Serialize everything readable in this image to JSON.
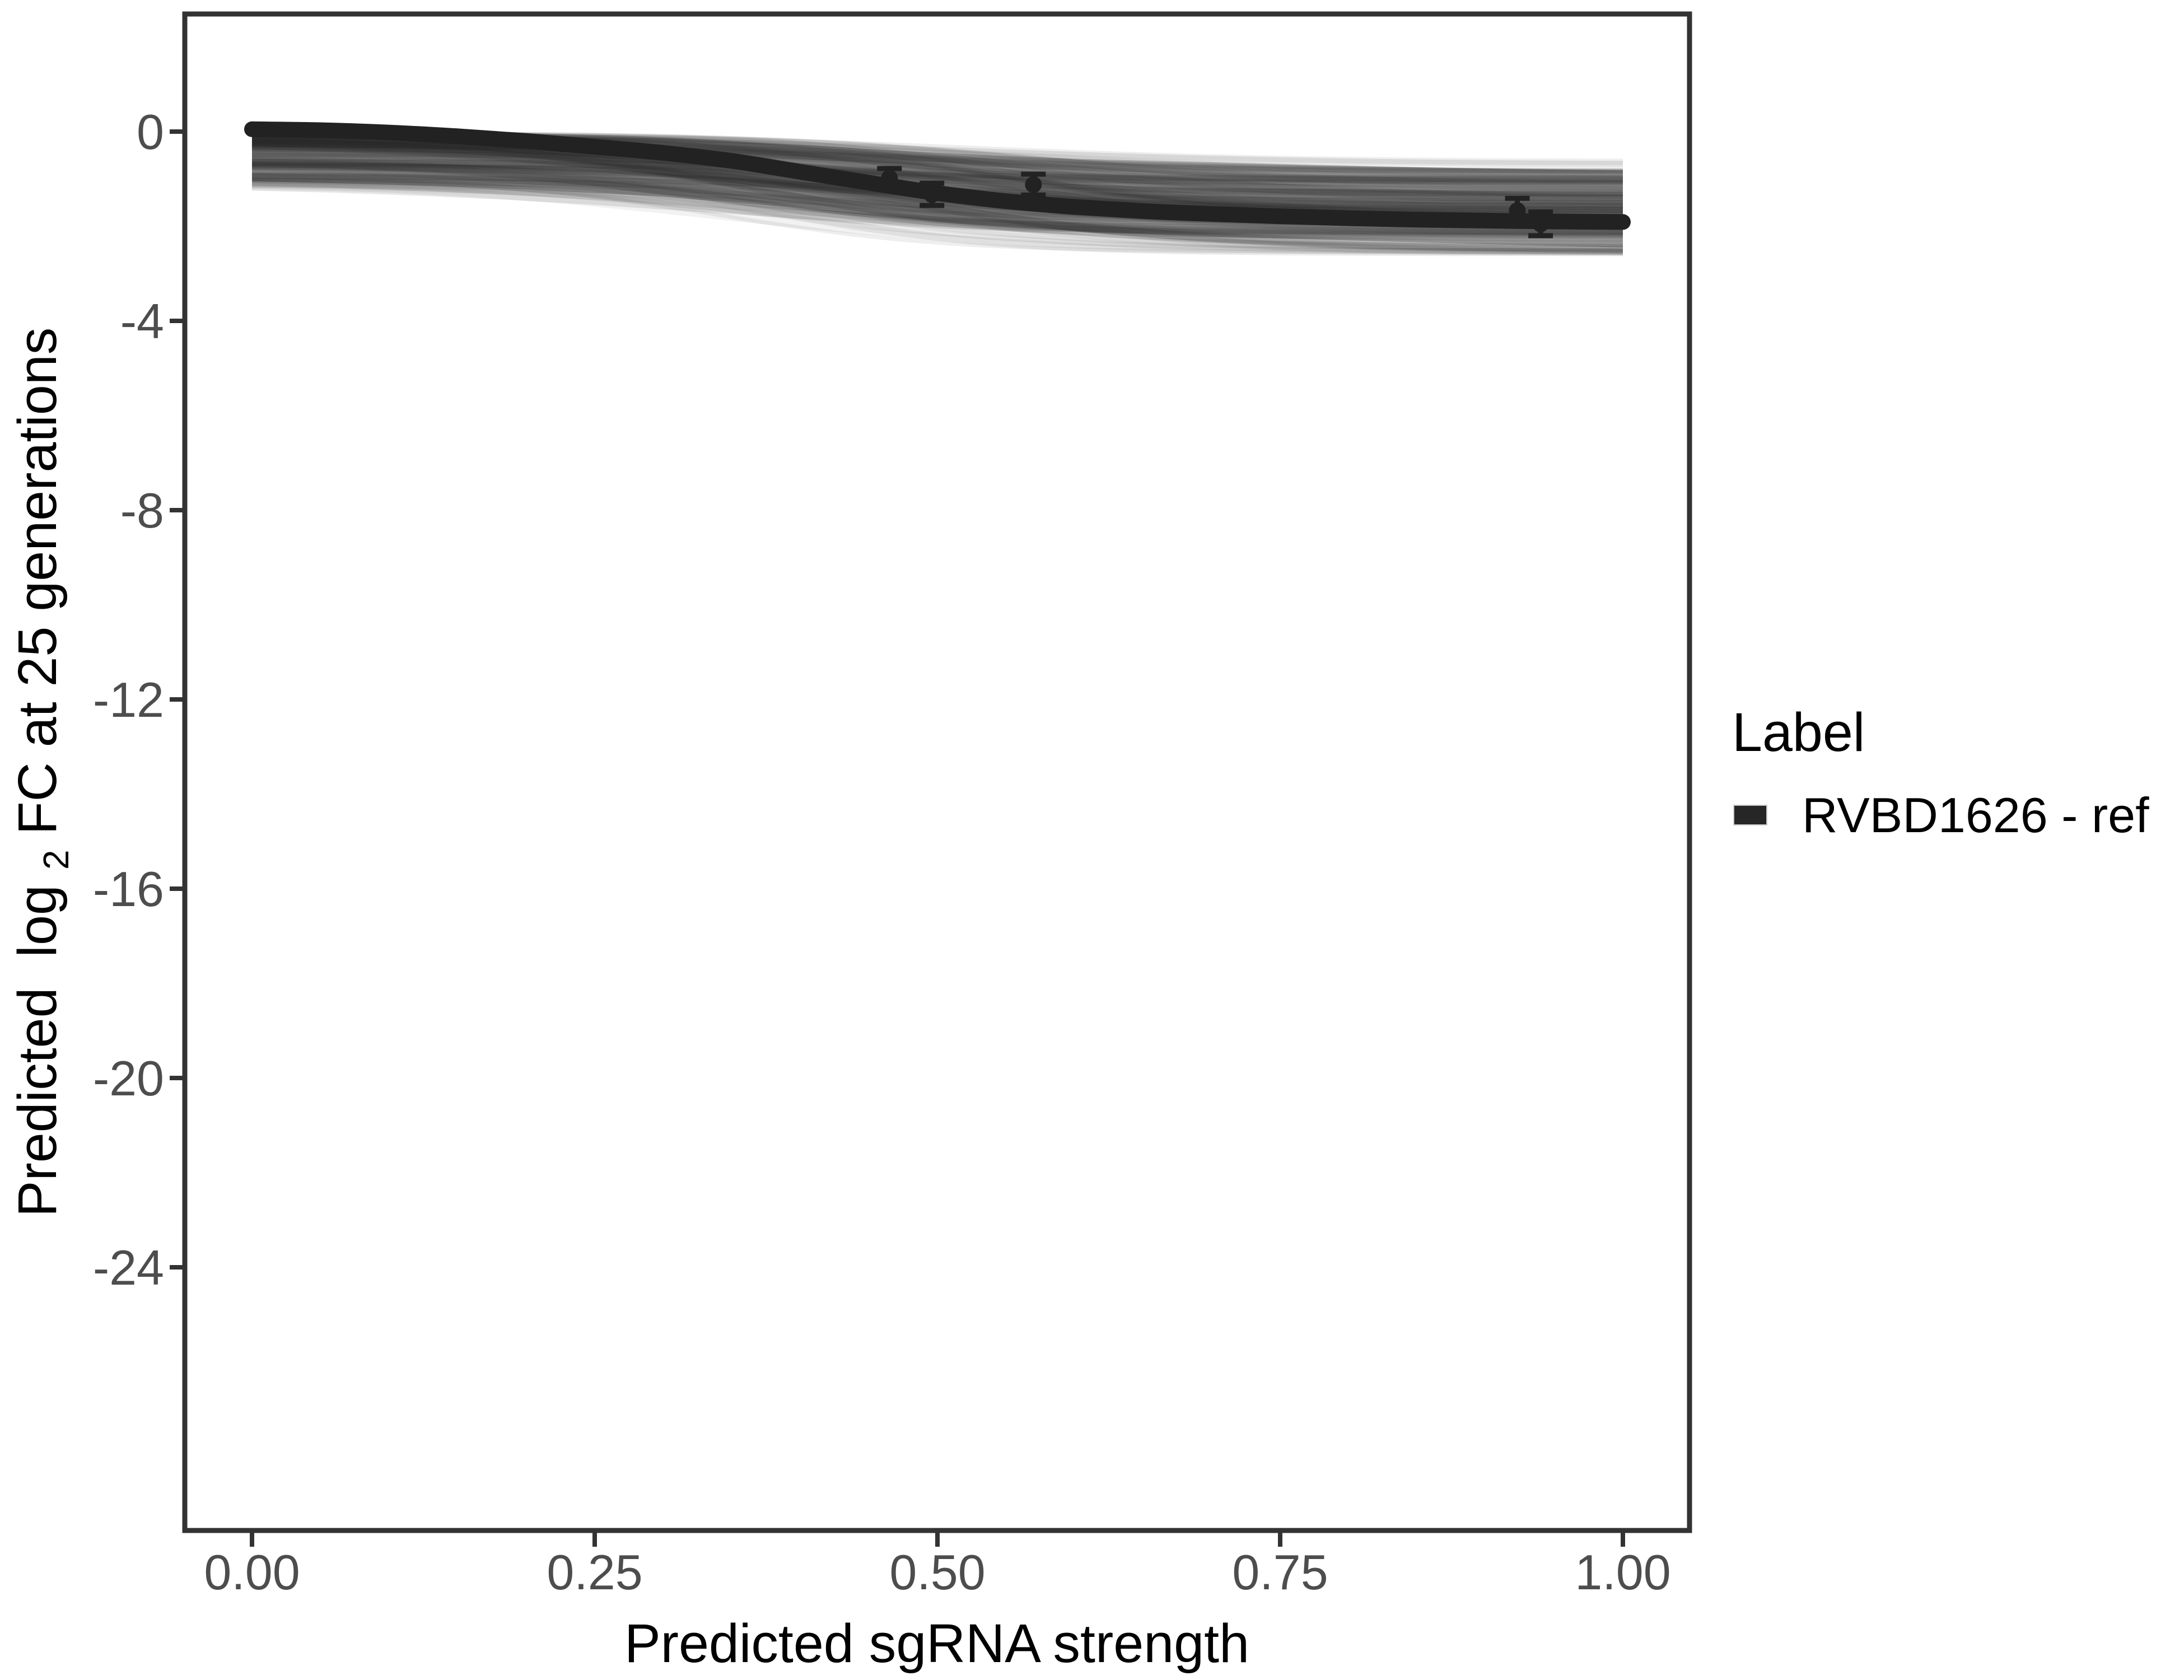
{
  "figure": {
    "background": "#ffffff"
  },
  "colors": {
    "panel_border": "#333333",
    "tick_mark": "#333333",
    "tick_label": "#4d4d4d",
    "axis_title": "#000000",
    "main_curve": "#222222",
    "error_bar": "#222222",
    "legend_key": "#262626",
    "band_fill": "rgba(0,0,0,0.28)",
    "spaghetti": "rgb(40,40,40)"
  },
  "chart_data": {
    "type": "line",
    "title": "",
    "xlabel": "Predicted sgRNA strength",
    "ylabel": "Predicted log2 FC at 25 generations",
    "ylabel_parts": {
      "pre": "Predicted  log",
      "sub": "2",
      "post": " FC at 25 generations"
    },
    "xlim": [
      -0.05,
      1.05
    ],
    "ylim": [
      -29.6,
      2.6
    ],
    "grid": false,
    "x_ticks": [
      0,
      0.25,
      0.5,
      0.75,
      1.0
    ],
    "x_tick_labels": [
      "0.00",
      "0.25",
      "0.50",
      "0.75",
      "1.00"
    ],
    "y_ticks": [
      0,
      -4,
      -8,
      -12,
      -16,
      -20,
      -24
    ],
    "y_tick_labels": [
      "0",
      "-4",
      "-8",
      "-12",
      "-16",
      "-20",
      "-24"
    ],
    "legend": {
      "title": "Label",
      "position": "right",
      "entries": [
        {
          "label": "RVBD1626 - ref",
          "color": "#262626"
        }
      ]
    },
    "series": [
      {
        "name": "RVBD1626 - ref (posterior mean fit)",
        "type": "line",
        "color": "#222222",
        "width": 28,
        "x": [
          0,
          0.05,
          0.1,
          0.15,
          0.2,
          0.25,
          0.3,
          0.35,
          0.4,
          0.45,
          0.5,
          0.55,
          0.6,
          0.65,
          0.7,
          0.75,
          0.8,
          0.85,
          0.9,
          0.95,
          1.0
        ],
        "y": [
          0.05,
          0.03,
          -0.02,
          -0.1,
          -0.2,
          -0.32,
          -0.45,
          -0.62,
          -0.85,
          -1.08,
          -1.3,
          -1.47,
          -1.59,
          -1.68,
          -1.74,
          -1.79,
          -1.83,
          -1.86,
          -1.88,
          -1.9,
          -1.91
        ]
      }
    ],
    "uncertainty_band": {
      "description": "envelope of posterior draw curves (gray spaghetti)",
      "x": [
        0,
        0.1,
        0.2,
        0.3,
        0.4,
        0.5,
        0.6,
        0.7,
        0.8,
        0.9,
        1.0
      ],
      "upper": [
        0.1,
        0.05,
        -0.03,
        -0.12,
        -0.28,
        -0.45,
        -0.57,
        -0.65,
        -0.72,
        -0.78,
        -0.82
      ],
      "lower": [
        -1.05,
        -1.12,
        -1.22,
        -1.38,
        -1.62,
        -1.92,
        -2.1,
        -2.22,
        -2.3,
        -2.38,
        -2.45
      ]
    },
    "points_with_error_bars": [
      {
        "x": 0.465,
        "y": -0.98,
        "ymin": -1.18,
        "ymax": -0.78
      },
      {
        "x": 0.496,
        "y": -1.33,
        "ymin": -1.56,
        "ymax": -1.09
      },
      {
        "x": 0.57,
        "y": -1.12,
        "ymin": -1.34,
        "ymax": -0.9
      },
      {
        "x": 0.923,
        "y": -1.67,
        "ymin": -1.93,
        "ymax": -1.41
      },
      {
        "x": 0.94,
        "y": -1.95,
        "ymin": -2.2,
        "ymax": -1.7
      }
    ]
  }
}
